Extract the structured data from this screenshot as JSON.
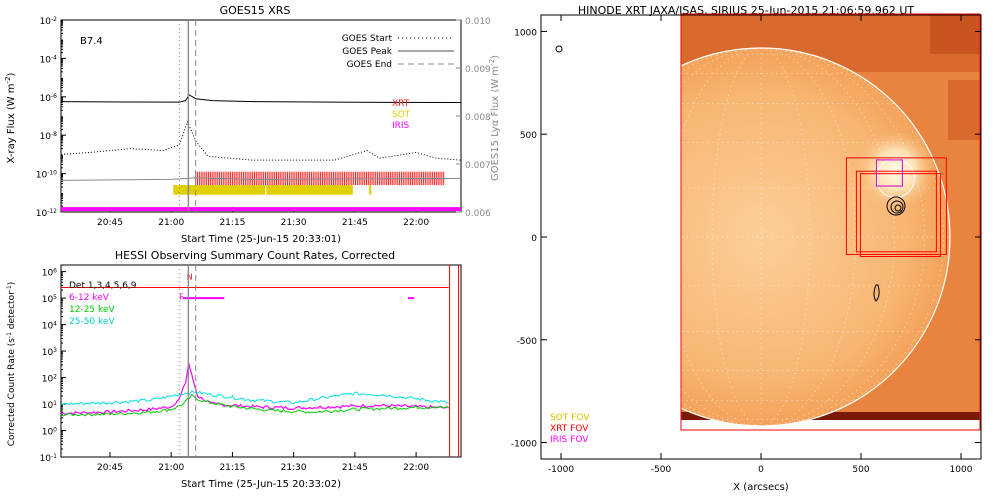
{
  "chart_data": [
    {
      "type": "line",
      "title": "GOES15 XRS",
      "xlabel": "Start Time (25-Jun-15 20:33:01)",
      "ylabel": "X-ray Flux (W m",
      "ylabel_sup": "-2",
      "ylabel_end": ")",
      "y2label": "GOES15 Lyα Flux (W m",
      "y2label_sup": "-2",
      "y2label_end": ")",
      "annotation": "B7.4",
      "x_ticks": [
        "20:45",
        "21:00",
        "21:15",
        "21:30",
        "21:45",
        "22:00"
      ],
      "x_tick_minutes": [
        45,
        60,
        75,
        90,
        105,
        120
      ],
      "xlim_minutes": [
        33.0,
        131.0
      ],
      "ylim_log": [
        -12,
        -2
      ],
      "y_ticks": [
        "10",
        "10",
        "10",
        "10",
        "10",
        "10"
      ],
      "y_tick_exps": [
        "-2",
        "-4",
        "-6",
        "-8",
        "-10",
        "-12"
      ],
      "y_tick_vals": [
        -2,
        -4,
        -6,
        -8,
        -10,
        -12
      ],
      "y2lim": [
        0.006,
        0.01
      ],
      "y2_ticks": [
        "0.010",
        "0.009",
        "0.008",
        "0.007",
        "0.006"
      ],
      "y2_tick_vals": [
        0.01,
        0.009,
        0.008,
        0.007,
        0.006
      ],
      "legend": [
        {
          "name": "GOES Start",
          "style": "dotted"
        },
        {
          "name": "GOES Peak",
          "style": "solid"
        },
        {
          "name": "GOES End",
          "style": "dashed"
        }
      ],
      "markers": {
        "start": 62.0,
        "peak": 64.2,
        "end": 66.0
      },
      "instrument_labels": [
        {
          "name": "XRT",
          "color": "#ff2020"
        },
        {
          "name": "SOT",
          "color": "#e0d000"
        },
        {
          "name": "IRIS",
          "color": "#ff00ff"
        }
      ],
      "long_channel_log": [
        [
          33,
          -6.25
        ],
        [
          50,
          -6.27
        ],
        [
          62,
          -6.28
        ],
        [
          63.5,
          -6.2
        ],
        [
          64.4,
          -5.9
        ],
        [
          66,
          -6.1
        ],
        [
          70,
          -6.2
        ],
        [
          80,
          -6.25
        ],
        [
          100,
          -6.28
        ],
        [
          131,
          -6.3
        ]
      ],
      "short_channel_log": [
        [
          33,
          -9.0
        ],
        [
          40,
          -8.9
        ],
        [
          50,
          -8.7
        ],
        [
          58,
          -8.8
        ],
        [
          62,
          -8.5
        ],
        [
          64,
          -7.3
        ],
        [
          66,
          -8.3
        ],
        [
          69,
          -9.1
        ],
        [
          80,
          -9.3
        ],
        [
          100,
          -9.3
        ],
        [
          108,
          -8.8
        ],
        [
          111,
          -9.2
        ],
        [
          120,
          -8.9
        ],
        [
          125,
          -9.2
        ],
        [
          131,
          -9.3
        ]
      ],
      "lya_flux": [
        [
          33,
          0.00666
        ],
        [
          60,
          0.00668
        ],
        [
          66,
          0.00671
        ],
        [
          80,
          0.00668
        ],
        [
          131,
          0.0067
        ]
      ],
      "xrt_range": [
        66.0,
        127.0
      ],
      "sot_ranges": [
        [
          60.5,
          83.0
        ],
        [
          83.3,
          104.5
        ],
        [
          108.5,
          109.0
        ]
      ],
      "iris_range": [
        33.0,
        131.0
      ]
    },
    {
      "type": "line",
      "title": "HESSI Observing Summary Count Rates, Corrected",
      "xlabel": "Start Time (25-Jun-15 20:33:02)",
      "ylabel": "Corrected Count Rate (s",
      "ylabel_sup": "-1",
      "ylabel_mid": " detector",
      "ylabel_sup2": "-1",
      "ylabel_end": ")",
      "x_ticks": [
        "20:45",
        "21:00",
        "21:15",
        "21:30",
        "21:45",
        "22:00"
      ],
      "x_tick_minutes": [
        45,
        60,
        75,
        90,
        105,
        120
      ],
      "xlim_minutes": [
        33.0,
        131.0
      ],
      "ylim_log": [
        -1,
        6
      ],
      "y_ticks": [
        "10",
        "10",
        "10",
        "10",
        "10",
        "10",
        "10",
        "10"
      ],
      "y_tick_exps": [
        "6",
        "5",
        "4",
        "3",
        "2",
        "1",
        "0",
        "-1"
      ],
      "y_tick_vals": [
        6,
        5,
        4,
        3,
        2,
        1,
        0,
        -1
      ],
      "legend": [
        {
          "name": "Det 1,3,4,5,6,9",
          "color": "#000000"
        },
        {
          "name": "6-12 keV",
          "color": "#ff00ff"
        },
        {
          "name": "12-25 keV",
          "color": "#00cc00"
        },
        {
          "name": "25-50 keV",
          "color": "#00e0e0"
        }
      ],
      "flags": [
        {
          "label": "F",
          "minute": 62.5
        },
        {
          "label": "N",
          "minute": 64.5
        }
      ],
      "markers": {
        "start": 62.0,
        "peak": 64.2,
        "end": 66.0
      },
      "series": [
        {
          "name": "6-12 keV",
          "color": "#ff00ff",
          "points": [
            [
              33,
              0.65
            ],
            [
              45,
              0.7
            ],
            [
              55,
              0.8
            ],
            [
              60,
              0.9
            ],
            [
              62,
              1.2
            ],
            [
              63.5,
              1.8
            ],
            [
              64.3,
              2.55
            ],
            [
              65,
              2.1
            ],
            [
              66.5,
              1.3
            ],
            [
              70,
              1.0
            ],
            [
              80,
              0.9
            ],
            [
              90,
              0.85
            ],
            [
              100,
              0.9
            ],
            [
              110,
              0.95
            ],
            [
              120,
              0.9
            ],
            [
              128,
              0.85
            ]
          ]
        },
        {
          "name": "12-25 keV",
          "color": "#00cc00",
          "points": [
            [
              33,
              0.6
            ],
            [
              45,
              0.62
            ],
            [
              55,
              0.7
            ],
            [
              60,
              0.8
            ],
            [
              63,
              1.0
            ],
            [
              65,
              1.3
            ],
            [
              68,
              1.1
            ],
            [
              75,
              0.9
            ],
            [
              85,
              0.75
            ],
            [
              95,
              0.7
            ],
            [
              105,
              0.8
            ],
            [
              115,
              0.85
            ],
            [
              125,
              0.9
            ],
            [
              128,
              0.85
            ]
          ]
        },
        {
          "name": "25-50 keV",
          "color": "#00e0e0",
          "points": [
            [
              33,
              1.0
            ],
            [
              45,
              1.05
            ],
            [
              55,
              1.15
            ],
            [
              60,
              1.3
            ],
            [
              63,
              1.4
            ],
            [
              66,
              1.45
            ],
            [
              70,
              1.35
            ],
            [
              80,
              1.15
            ],
            [
              90,
              1.05
            ],
            [
              100,
              1.3
            ],
            [
              105,
              1.4
            ],
            [
              112,
              1.35
            ],
            [
              120,
              1.2
            ],
            [
              128,
              1.05
            ]
          ]
        },
        {
          "name": "Det 1,3,4,5,6,9",
          "color": "#ff0000",
          "points": [
            [
              33,
              5.4
            ],
            [
              128,
              5.4
            ]
          ]
        }
      ]
    },
    {
      "type": "scatter",
      "title": "HINODE XRT JAXA/ISAS, SIRIUS 25-Jun-2015 21:06:59.962 UT",
      "xlabel": "X (arcsecs)",
      "ylabel": "",
      "x_ticks": [
        "-1000",
        "-500",
        "0",
        "500",
        "1000"
      ],
      "x_tick_vals": [
        -1000,
        -500,
        0,
        500,
        1000
      ],
      "y_ticks": [
        "1000",
        "500",
        "0",
        "-500",
        "-1000"
      ],
      "y_tick_vals": [
        1000,
        500,
        0,
        -500,
        -1000
      ],
      "xlim": [
        -1100,
        1100
      ],
      "ylim": [
        -1080,
        1080
      ],
      "image_extent": {
        "x": [
          -395,
          1100
        ],
        "y": [
          -940,
          1080
        ]
      },
      "limb_radius": 945,
      "fov_boxes": [
        {
          "name": "XRT FOV",
          "color": "#ff0000",
          "x": [
            427,
            927
          ],
          "y": [
            -85,
            385
          ]
        },
        {
          "name": "XRT FOV",
          "color": "#ff0000",
          "x": [
            477,
            877
          ],
          "y": [
            -72,
            320
          ]
        },
        {
          "name": "XRT FOV",
          "color": "#ff0000",
          "x": [
            497,
            897
          ],
          "y": [
            -95,
            308
          ]
        },
        {
          "name": "IRIS FOV",
          "color": "#cc00cc",
          "x": [
            577,
            707
          ],
          "y": [
            248,
            375
          ]
        }
      ],
      "fov_legend": [
        {
          "name": "SOT FOV",
          "color": "#e0c000"
        },
        {
          "name": "XRT FOV",
          "color": "#ff0000"
        },
        {
          "name": "IRIS FOV",
          "color": "#ff00ff"
        }
      ],
      "region_center": [
        672,
        325
      ],
      "zoom_circle_radius": 95
    }
  ]
}
